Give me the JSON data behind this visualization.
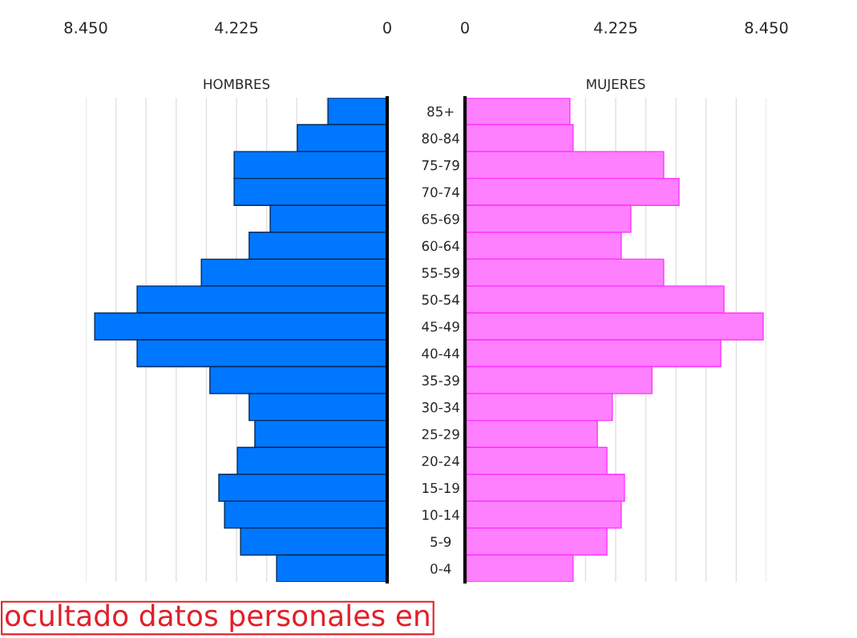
{
  "chart_data": [
    {
      "type": "bar",
      "orientation": "horizontal",
      "title": "HOMBRES",
      "categories": [
        "85+",
        "80-84",
        "75-79",
        "70-74",
        "65-69",
        "60-64",
        "55-59",
        "50-54",
        "45-49",
        "40-44",
        "35-39",
        "30-34",
        "25-29",
        "20-24",
        "15-19",
        "10-14",
        "5-9",
        "0-4"
      ],
      "series": [
        {
          "color": "#0077ff",
          "values": [
            1660,
            2520,
            4290,
            4290,
            3280,
            3870,
            5210,
            7010,
            8200,
            7010,
            4970,
            3870,
            3710,
            4200,
            4720,
            4560,
            4110,
            3100
          ]
        }
      ],
      "xlim": [
        8450,
        0
      ],
      "xticks": [
        0,
        {
          "value": 1690,
          "label": null
        },
        {
          "value": 2535,
          "label": null
        },
        {
          "value": 3380,
          "label": null
        },
        {
          "value": 4225,
          "label": "4.225"
        },
        {
          "value": 5070,
          "label": null
        },
        {
          "value": 5915,
          "label": null
        },
        {
          "value": 6760,
          "label": null
        },
        {
          "value": 7605,
          "label": null
        },
        {
          "value": 8450,
          "label": "8.450"
        }
      ],
      "grid": "x",
      "annotations": [
        "ocultado datos personales en"
      ]
    },
    {
      "type": "bar",
      "orientation": "horizontal",
      "title": "MUJERES",
      "series": [
        {
          "color": "#ff80ff",
          "values": [
            2940,
            3030,
            5570,
            6000,
            4650,
            4380,
            5570,
            7260,
            8360,
            7170,
            5240,
            4130,
            3710,
            3980,
            4470,
            4380,
            3980,
            3030
          ]
        }
      ],
      "xlim": [
        0,
        8450
      ],
      "xticks": [
        0,
        {
          "value": 3380,
          "label": null
        },
        {
          "value": 4225,
          "label": "4.225"
        },
        {
          "value": 5070,
          "label": null
        },
        {
          "value": 5915,
          "label": null
        },
        {
          "value": 6760,
          "label": null
        },
        {
          "value": 7605,
          "label": null
        },
        {
          "value": 8450,
          "label": "8.450"
        }
      ],
      "grid": "x",
      "tick_labels": "x"
    }
  ]
}
